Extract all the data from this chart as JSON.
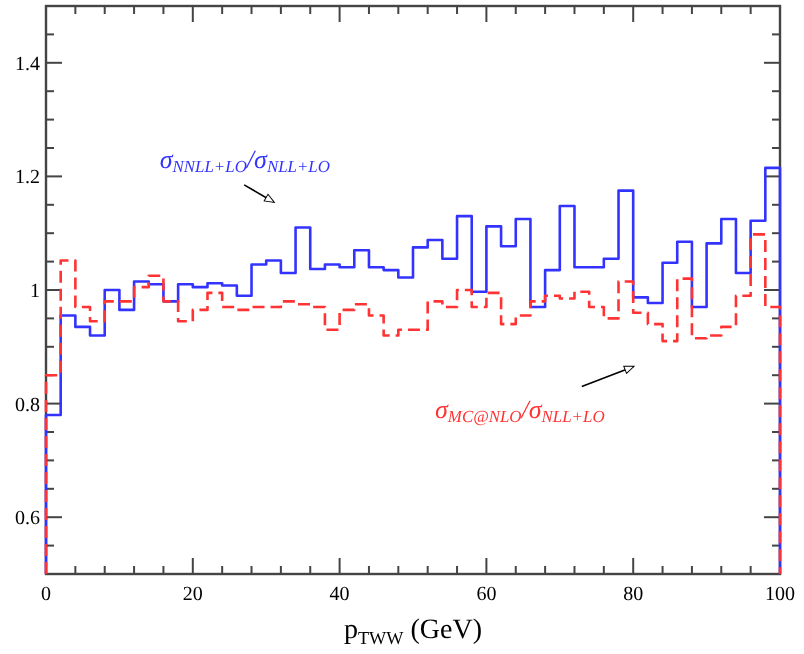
{
  "chart_data": {
    "type": "histogram",
    "xlabel": "p$_{TWW}$ (GeV)",
    "bins": [
      0,
      2,
      4,
      6,
      8,
      10,
      12,
      14,
      16,
      18,
      20,
      22,
      24,
      26,
      28,
      30,
      32,
      34,
      36,
      38,
      40,
      42,
      44,
      46,
      48,
      50,
      52,
      54,
      56,
      58,
      60,
      62,
      64,
      66,
      68,
      70,
      72,
      74,
      76,
      78,
      80,
      82,
      84,
      86,
      88,
      90,
      92,
      94,
      96,
      98,
      100
    ],
    "series": [
      {
        "name": "σ$_{NNLL+LO}$/σ$_{NLL+LO}$",
        "color": "#3333ff",
        "line_style": "solid",
        "values": [
          0.78,
          0.955,
          0.935,
          0.92,
          1.0,
          0.965,
          1.015,
          1.01,
          0.98,
          1.01,
          1.005,
          1.012,
          1.008,
          0.99,
          1.045,
          1.052,
          1.03,
          1.11,
          1.037,
          1.045,
          1.04,
          1.07,
          1.04,
          1.035,
          1.022,
          1.075,
          1.088,
          1.055,
          1.13,
          0.997,
          1.112,
          1.077,
          1.125,
          0.97,
          1.035,
          1.148,
          1.04,
          1.04,
          1.055,
          1.175,
          0.987,
          0.977,
          1.048,
          1.085,
          0.97,
          1.082,
          1.125,
          1.03,
          1.122,
          1.215
        ]
      },
      {
        "name": "σ$_{MC@NLO}$/σ$_{NLL+LO}$",
        "color": "#ff3333",
        "line_style": "dashed",
        "values": [
          0.85,
          1.052,
          0.97,
          0.945,
          0.98,
          0.98,
          1.005,
          1.025,
          0.98,
          0.945,
          0.965,
          0.995,
          0.97,
          0.965,
          0.97,
          0.97,
          0.98,
          0.975,
          0.97,
          0.93,
          0.965,
          0.975,
          0.955,
          0.92,
          0.93,
          0.93,
          0.98,
          0.97,
          1.0,
          0.97,
          0.995,
          0.94,
          0.955,
          0.98,
          0.99,
          0.985,
          0.997,
          0.97,
          0.95,
          1.015,
          0.96,
          0.94,
          0.91,
          1.02,
          0.915,
          0.92,
          0.935,
          0.99,
          1.098,
          0.97
        ]
      }
    ],
    "xlim": [
      0,
      100
    ],
    "xticks": [
      0,
      {
        "value": 4,
        "label": null
      },
      {
        "value": 8,
        "label": null
      },
      {
        "value": 12,
        "label": null
      },
      {
        "value": 16,
        "label": null
      },
      20,
      {
        "value": 24,
        "label": null
      },
      {
        "value": 28,
        "label": null
      },
      {
        "value": 32,
        "label": null
      },
      {
        "value": 36,
        "label": null
      },
      40,
      {
        "value": 44,
        "label": null
      },
      {
        "value": 48,
        "label": null
      },
      {
        "value": 52,
        "label": null
      },
      {
        "value": 56,
        "label": null
      },
      60,
      {
        "value": 64,
        "label": null
      },
      {
        "value": 68,
        "label": null
      },
      {
        "value": 72,
        "label": null
      },
      {
        "value": 76,
        "label": null
      },
      80,
      {
        "value": 84,
        "label": null
      },
      {
        "value": 88,
        "label": null
      },
      {
        "value": 92,
        "label": null
      },
      {
        "value": 96,
        "label": null
      },
      100
    ],
    "ylim": [
      0.5,
      1.5
    ],
    "yticks": [
      {
        "value": 0.55,
        "label": null
      },
      0.6,
      {
        "value": 0.65,
        "label": null
      },
      {
        "value": 0.7,
        "label": null
      },
      {
        "value": 0.75,
        "label": null
      },
      0.8,
      {
        "value": 0.85,
        "label": null
      },
      {
        "value": 0.9,
        "label": null
      },
      {
        "value": 0.95,
        "label": null
      },
      1.0,
      {
        "value": 1.05,
        "label": null
      },
      {
        "value": 1.1,
        "label": null
      },
      {
        "value": 1.15,
        "label": null
      },
      1.2,
      {
        "value": 1.25,
        "label": null
      },
      {
        "value": 1.3,
        "label": null
      },
      {
        "value": 1.35,
        "label": null
      },
      1.4,
      {
        "value": 1.45,
        "label": null
      }
    ],
    "grid": false
  }
}
